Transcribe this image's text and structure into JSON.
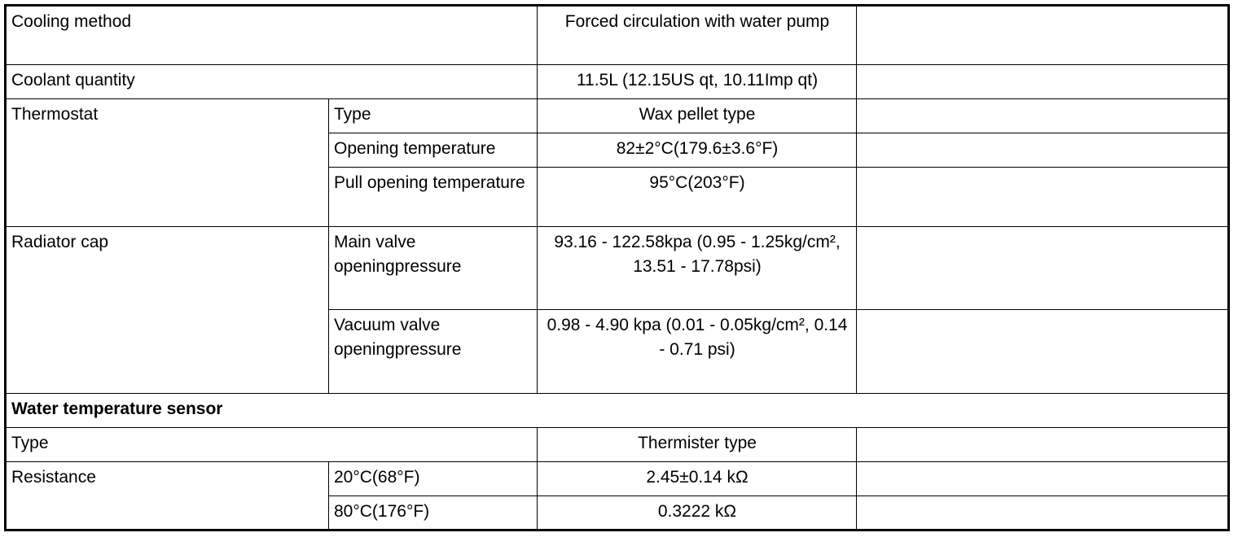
{
  "table": {
    "rows": [
      {
        "item": "Cooling method",
        "value": "Forced circulation with water pump"
      },
      {
        "item": "Coolant quantity",
        "value": "11.5L (12.15US qt, 10.11Imp qt)"
      },
      {
        "item": "Thermostat",
        "sub": [
          {
            "name": "Type",
            "value": "Wax pellet type"
          },
          {
            "name": "Opening temperature",
            "value": "82±2°C(179.6±3.6°F)"
          },
          {
            "name": "Pull opening temperature",
            "value": "95°C(203°F)"
          }
        ]
      },
      {
        "item": "Radiator cap",
        "sub": [
          {
            "name": "Main valve openingpressure",
            "value": "93.16 - 122.58kpa (0.95 - 1.25kg/cm², 13.51 - 17.78psi)"
          },
          {
            "name": "Vacuum valve openingpressure",
            "value": "0.98 - 4.90 kpa (0.01 - 0.05kg/cm², 0.14 - 0.71 psi)"
          }
        ]
      },
      {
        "section": "Water temperature sensor"
      },
      {
        "item": "Type",
        "value": "Thermister type"
      },
      {
        "item": "Resistance",
        "sub": [
          {
            "name": "20°C(68°F)",
            "value": "2.45±0.14 kΩ"
          },
          {
            "name": "80°C(176°F)",
            "value": "0.3222 kΩ"
          }
        ]
      }
    ]
  }
}
